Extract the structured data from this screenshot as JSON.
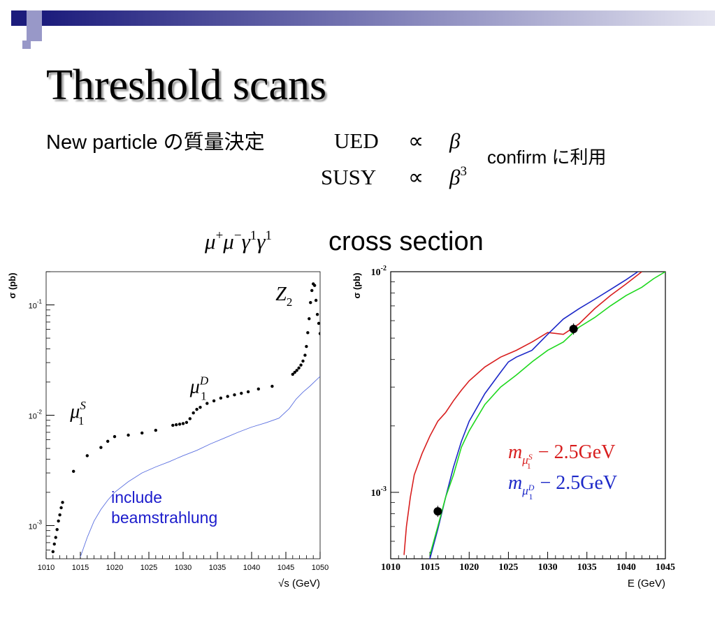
{
  "slide": {
    "title": "Threshold scans",
    "new_particle_label": "New particle の質量決定",
    "ued_label": "UED",
    "ued_power": "β",
    "susy_label": "SUSY",
    "susy_power": "β",
    "susy_exponent": "3",
    "proportional_symbol": "∝",
    "confirm_text": "confirm に利用",
    "cross_section_label": "cross section",
    "colors": {
      "title_shadow": "#9a9a9a",
      "deco_navy": "#1c1c7c",
      "deco_lilac": "#9898c8"
    }
  },
  "chart_data": [
    {
      "type": "scatter",
      "ylabel": "σ (pb)",
      "xlabel": "√s (GeV)",
      "xlim": [
        1010,
        1050
      ],
      "ylim": [
        0.0005,
        0.2
      ],
      "y_scale": "log",
      "x_ticks": [
        1010,
        1015,
        1020,
        1025,
        1030,
        1035,
        1040,
        1045,
        1050
      ],
      "x_tick_labels": [
        "1010",
        "1015",
        "1020",
        "1025",
        "1030",
        "1035",
        "1040",
        "1045",
        "1050"
      ],
      "y_ticks": [
        0.001,
        0.01,
        0.1
      ],
      "y_tick_base": "10",
      "y_tick_exponents": [
        "-3",
        "-2",
        "-1"
      ],
      "annotations": [
        {
          "text": "μ",
          "sup": "S",
          "sub": "1",
          "x": 1013.5,
          "y": 0.0095
        },
        {
          "text": "μ",
          "sup": "D",
          "sub": "1",
          "x": 1031,
          "y": 0.016
        },
        {
          "text": "Z",
          "sub": "2",
          "x": 1043.5,
          "y": 0.11
        },
        {
          "text": "include",
          "x": 1019.5,
          "y": 0.0016
        },
        {
          "text": "beamstrahlung",
          "x": 1019.5,
          "y": 0.00105
        }
      ],
      "series": [
        {
          "style": "points",
          "color": "#000000",
          "points": [
            [
              1011,
              0.00058
            ],
            [
              1011.2,
              0.00068
            ],
            [
              1011.4,
              0.00078
            ],
            [
              1011.6,
              0.00092
            ],
            [
              1011.8,
              0.0011
            ],
            [
              1012,
              0.00125
            ],
            [
              1012.2,
              0.00145
            ],
            [
              1012.4,
              0.00162
            ],
            [
              1014,
              0.0031
            ],
            [
              1016,
              0.0043
            ],
            [
              1018,
              0.0051
            ],
            [
              1019,
              0.0058
            ],
            [
              1020,
              0.0064
            ],
            [
              1022,
              0.0066
            ],
            [
              1024,
              0.0069
            ],
            [
              1026,
              0.0073
            ],
            [
              1028.5,
              0.0081
            ],
            [
              1029,
              0.0082
            ],
            [
              1029.5,
              0.0083
            ],
            [
              1030,
              0.0084
            ],
            [
              1030.5,
              0.0086
            ],
            [
              1031,
              0.0093
            ],
            [
              1031.5,
              0.0105
            ],
            [
              1032,
              0.0113
            ],
            [
              1032.5,
              0.0118
            ],
            [
              1033.5,
              0.0128
            ],
            [
              1034.5,
              0.0135
            ],
            [
              1035.5,
              0.0143
            ],
            [
              1036.5,
              0.0148
            ],
            [
              1037.5,
              0.0153
            ],
            [
              1038.5,
              0.0158
            ],
            [
              1039.5,
              0.0163
            ],
            [
              1041,
              0.0173
            ],
            [
              1043,
              0.0183
            ],
            [
              1046,
              0.0235
            ],
            [
              1046.3,
              0.0245
            ],
            [
              1046.6,
              0.0255
            ],
            [
              1046.9,
              0.0268
            ],
            [
              1047.2,
              0.0285
            ],
            [
              1047.5,
              0.031
            ],
            [
              1047.8,
              0.035
            ],
            [
              1048,
              0.042
            ],
            [
              1048.2,
              0.056
            ],
            [
              1048.4,
              0.075
            ],
            [
              1048.6,
              0.105
            ],
            [
              1048.8,
              0.135
            ],
            [
              1049,
              0.155
            ],
            [
              1049.2,
              0.15
            ],
            [
              1049.4,
              0.11
            ],
            [
              1049.6,
              0.082
            ],
            [
              1049.8,
              0.068
            ],
            [
              1050,
              0.055
            ]
          ]
        },
        {
          "style": "line",
          "color": "#5a6fe0",
          "points": [
            [
              1015,
              0.00052
            ],
            [
              1016,
              0.00078
            ],
            [
              1017,
              0.0011
            ],
            [
              1018,
              0.0014
            ],
            [
              1019,
              0.0017
            ],
            [
              1020,
              0.002
            ],
            [
              1022,
              0.0025
            ],
            [
              1024,
              0.003
            ],
            [
              1026,
              0.0034
            ],
            [
              1028,
              0.0038
            ],
            [
              1030,
              0.0043
            ],
            [
              1032,
              0.0048
            ],
            [
              1034,
              0.0055
            ],
            [
              1036,
              0.0062
            ],
            [
              1038,
              0.007
            ],
            [
              1040,
              0.0078
            ],
            [
              1042,
              0.0085
            ],
            [
              1044,
              0.0094
            ],
            [
              1045.5,
              0.0115
            ],
            [
              1046.5,
              0.014
            ],
            [
              1047.5,
              0.0162
            ],
            [
              1048.5,
              0.0183
            ],
            [
              1049.5,
              0.021
            ],
            [
              1050,
              0.0225
            ]
          ]
        }
      ]
    },
    {
      "type": "line",
      "ylabel": "σ (pb)",
      "xlabel": "E (GeV)",
      "xlim": [
        1010,
        1045
      ],
      "ylim": [
        0.0005,
        0.01
      ],
      "y_scale": "log",
      "x_ticks": [
        1010,
        1015,
        1020,
        1025,
        1030,
        1035,
        1040,
        1045
      ],
      "x_tick_labels": [
        "1010",
        "1015",
        "1020",
        "1025",
        "1030",
        "1035",
        "1040",
        "1045"
      ],
      "y_ticks": [
        0.001,
        0.01
      ],
      "y_tick_base": "10",
      "y_tick_exponents": [
        "-3",
        "-2"
      ],
      "legend": [
        {
          "color": "#d81e1e",
          "prefix": "m",
          "sub": "μ",
          "subsup": "S",
          "subsub": "1",
          "suffix": "− 2.5GeV"
        },
        {
          "color": "#1c28c8",
          "prefix": "m",
          "sub": "μ",
          "subsup": "D",
          "subsub": "1",
          "suffix": "− 2.5GeV"
        }
      ],
      "markers": [
        [
          1016,
          0.00082
        ],
        [
          1033.3,
          0.0055
        ]
      ],
      "series": [
        {
          "color": "#d81e1e",
          "points": [
            [
              1011.7,
              0.00052
            ],
            [
              1012,
              0.0007
            ],
            [
              1012.5,
              0.00095
            ],
            [
              1013,
              0.0012
            ],
            [
              1014,
              0.0015
            ],
            [
              1015,
              0.0018
            ],
            [
              1016,
              0.0021
            ],
            [
              1017,
              0.0023
            ],
            [
              1018,
              0.0026
            ],
            [
              1019,
              0.0029
            ],
            [
              1020,
              0.0032
            ],
            [
              1022,
              0.0037
            ],
            [
              1024,
              0.0041
            ],
            [
              1026,
              0.0044
            ],
            [
              1028,
              0.0048
            ],
            [
              1030,
              0.0053
            ],
            [
              1032,
              0.0052
            ],
            [
              1034,
              0.0058
            ],
            [
              1036,
              0.0068
            ],
            [
              1038,
              0.0078
            ],
            [
              1040,
              0.0088
            ],
            [
              1042,
              0.01
            ]
          ]
        },
        {
          "color": "#1c28c8",
          "points": [
            [
              1015,
              0.0005
            ],
            [
              1016,
              0.00068
            ],
            [
              1017,
              0.00095
            ],
            [
              1018,
              0.0013
            ],
            [
              1019,
              0.0017
            ],
            [
              1020,
              0.0021
            ],
            [
              1022,
              0.0028
            ],
            [
              1024,
              0.0035
            ],
            [
              1025,
              0.0039
            ],
            [
              1026,
              0.0041
            ],
            [
              1028,
              0.0044
            ],
            [
              1030,
              0.0052
            ],
            [
              1032,
              0.0061
            ],
            [
              1034,
              0.0068
            ],
            [
              1036,
              0.0075
            ],
            [
              1038,
              0.0083
            ],
            [
              1040,
              0.0092
            ],
            [
              1041.5,
              0.01
            ]
          ]
        },
        {
          "color": "#1ed81e",
          "points": [
            [
              1015,
              0.00052
            ],
            [
              1016,
              0.0007
            ],
            [
              1017,
              0.00095
            ],
            [
              1018,
              0.0012
            ],
            [
              1019,
              0.0016
            ],
            [
              1020,
              0.0019
            ],
            [
              1022,
              0.0025
            ],
            [
              1024,
              0.003
            ],
            [
              1026,
              0.0034
            ],
            [
              1028,
              0.0039
            ],
            [
              1030,
              0.0044
            ],
            [
              1032,
              0.0048
            ],
            [
              1034,
              0.0056
            ],
            [
              1036,
              0.0062
            ],
            [
              1038,
              0.007
            ],
            [
              1040,
              0.0078
            ],
            [
              1042,
              0.0085
            ],
            [
              1043.5,
              0.0093
            ],
            [
              1045,
              0.01
            ]
          ]
        }
      ]
    }
  ]
}
